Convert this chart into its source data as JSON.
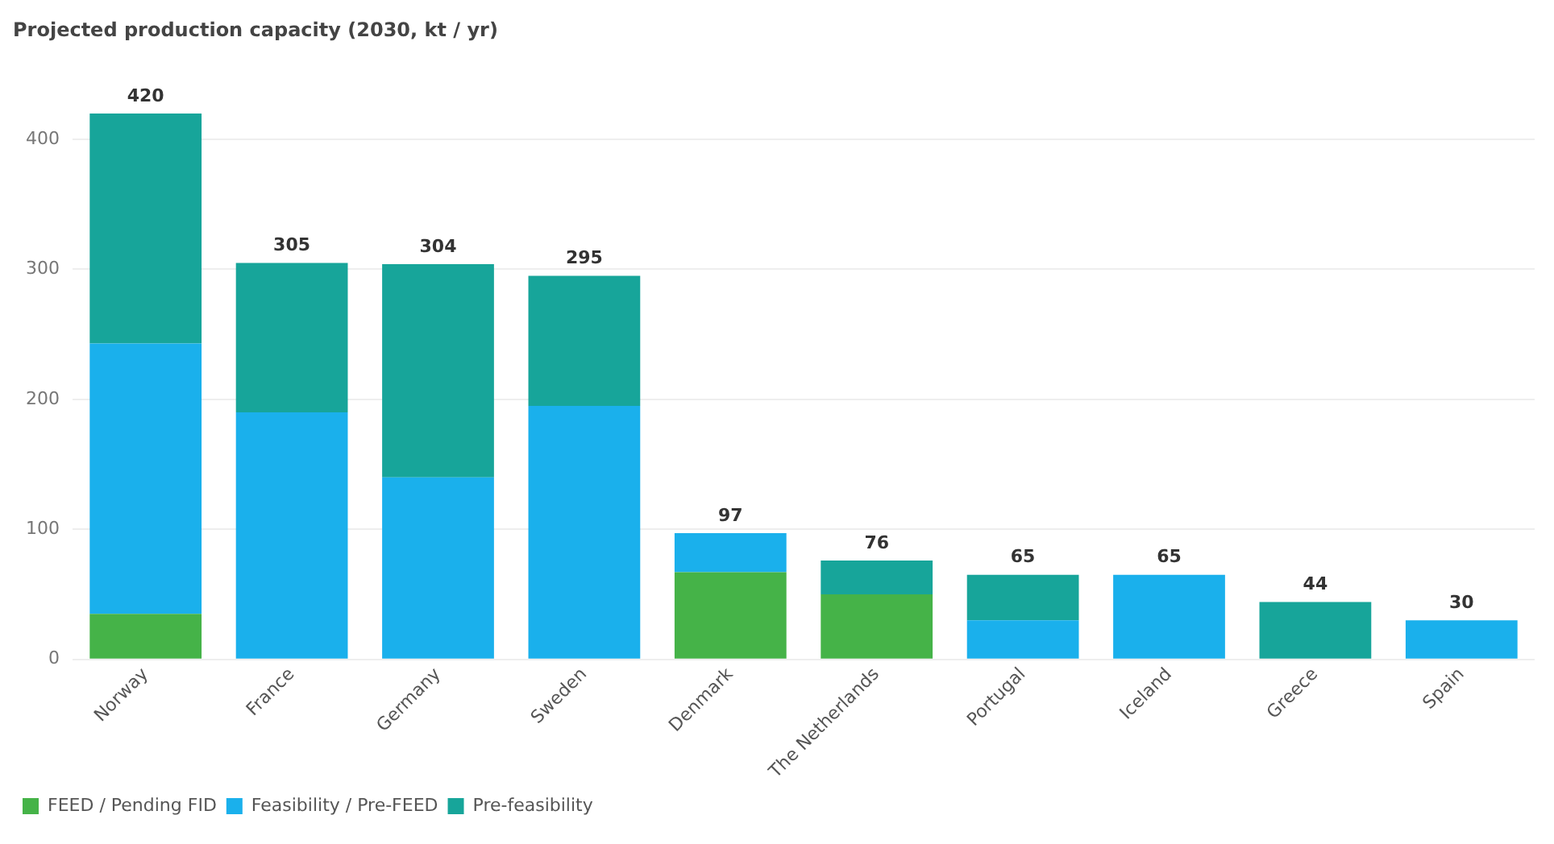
{
  "chart_data": {
    "type": "bar",
    "title": "Projected production capacity (2030, kt / yr)",
    "stacked": true,
    "categories": [
      "Norway",
      "France",
      "Germany",
      "Sweden",
      "Denmark",
      "The Netherlands",
      "Portugal",
      "Iceland",
      "Greece",
      "Spain"
    ],
    "series": [
      {
        "name": "FEED / Pending FID",
        "color": "#45b348",
        "values": [
          35,
          0,
          0,
          0,
          67,
          50,
          0,
          0,
          0,
          0
        ]
      },
      {
        "name": "Feasibility / Pre-FEED",
        "color": "#1ab0ec",
        "values": [
          208,
          190,
          140,
          195,
          30,
          0,
          30,
          65,
          0,
          30
        ]
      },
      {
        "name": "Pre-feasibility",
        "color": "#17a59a",
        "values": [
          177,
          115,
          164,
          100,
          0,
          26,
          35,
          0,
          44,
          0
        ]
      }
    ],
    "totals": [
      "420",
      "305",
      "304",
      "295",
      "97",
      "76",
      "65",
      "65",
      "44",
      "30"
    ],
    "ylim": [
      0,
      420
    ],
    "yticks": [
      0,
      100,
      200,
      300,
      400
    ],
    "grid": "y",
    "legend": "bottom left"
  }
}
